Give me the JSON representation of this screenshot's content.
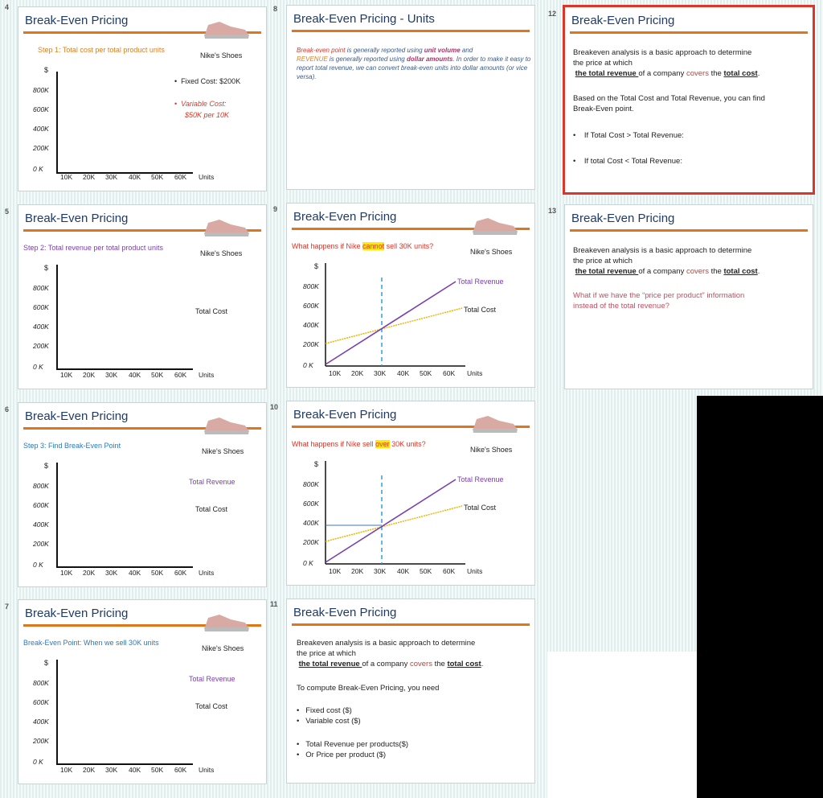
{
  "slides": {
    "s4": {
      "num": "4",
      "title": "Break-Even Pricing",
      "step": "Step 1: Total cost per total product units",
      "brand": "Nike's Shoes",
      "bullet1": "Fixed Cost: $200K",
      "bullet2a": "Variable Cost:",
      "bullet2b": "$50K per 10K"
    },
    "s5": {
      "num": "5",
      "title": "Break-Even Pricing",
      "step": "Step 2: Total revenue per total product units",
      "brand": "Nike's Shoes",
      "tc": "Total Cost"
    },
    "s6": {
      "num": "6",
      "title": "Break-Even Pricing",
      "step": "Step 3: Find Break-Even Point",
      "brand": "Nike's Shoes",
      "tr": "Total Revenue",
      "tc": "Total Cost"
    },
    "s7": {
      "num": "7",
      "title": "Break-Even Pricing",
      "step": "Break-Even Point: When we sell 30K units",
      "brand": "Nike's Shoes",
      "tr": "Total Revenue",
      "tc": "Total Cost"
    },
    "s8": {
      "num": "8",
      "title": "Break-Even Pricing - Units",
      "p1": "Break-even point",
      "p2": " is generally reported using ",
      "p3": "unit volume",
      "p4": " and",
      "p5": "REVENUE",
      "p6": " is generally reported using ",
      "p7": "dollar amounts",
      "p8": ". In order to make it easy to report total revenue, we can convert break-even units into dollar amounts (or vice versa)."
    },
    "s9": {
      "num": "9",
      "title": "Break-Even Pricing",
      "q1": "What happens if Nike ",
      "q2": "cannot",
      "q3": " sell 30K units?",
      "brand": "Nike's Shoes",
      "tr": "Total Revenue",
      "tc": "Total Cost"
    },
    "s10": {
      "num": "10",
      "title": "Break-Even Pricing",
      "q1": "What happens if Nike sell ",
      "q2": "over",
      "q3": " 30K units?",
      "brand": "Nike's Shoes",
      "tr": "Total Revenue",
      "tc": "Total Cost"
    },
    "s11": {
      "num": "11",
      "title": "Break-Even Pricing",
      "intro1": "Breakeven analysis is a basic approach to determine",
      "intro2": "the price at which",
      "u1": "the total revenue ",
      "mid": "of a company ",
      "covers": "covers",
      "the": " the ",
      "u2": "total cost",
      "dot": ".",
      "need": "To compute Break-Even Pricing, you need",
      "b1": "Fixed cost ($)",
      "b2": "Variable cost ($)",
      "b3": "Total Revenue per products($)",
      "b4": "Or Price per product ($)"
    },
    "s12": {
      "num": "12",
      "title": "Break-Even Pricing",
      "intro1": "Breakeven analysis is a basic approach to determine",
      "intro2": "the price at which",
      "u1": "the total revenue ",
      "mid": "of a company ",
      "covers": "covers",
      "the": " the ",
      "u2": "total cost",
      "dot": ".",
      "based1": "Based on the Total Cost and Total Revenue, you can find",
      "based2": "Break-Even point.",
      "b1": "If Total Cost > Total Revenue:",
      "b2": "If total Cost  < Total Revenue:"
    },
    "s13": {
      "num": "13",
      "title": "Break-Even Pricing",
      "intro1": "Breakeven analysis is a basic approach to determine",
      "intro2": "the price at which",
      "u1": "the total revenue ",
      "mid": "of a company ",
      "covers": "covers",
      "the": " the ",
      "u2": "total cost",
      "dot": ".",
      "what1": "What if we have the “price per product” information",
      "what2": "instead of the total revenue?"
    }
  },
  "axis": {
    "y_unit": "$",
    "y_ticks": [
      "800K",
      "600K",
      "400K",
      "200K",
      "0 K"
    ],
    "x_ticks": [
      "10K",
      "20K",
      "30K",
      "40K",
      "50K",
      "60K"
    ],
    "x_unit": "Units"
  },
  "colors": {
    "accent": "#e0761c",
    "title": "#1f3b66",
    "revenue": "#7a3fb0",
    "cost": "#f0b400",
    "marker": "#2aa0e0",
    "selected": "#d9372b"
  },
  "icons": {
    "shoe": "sneaker-image"
  }
}
